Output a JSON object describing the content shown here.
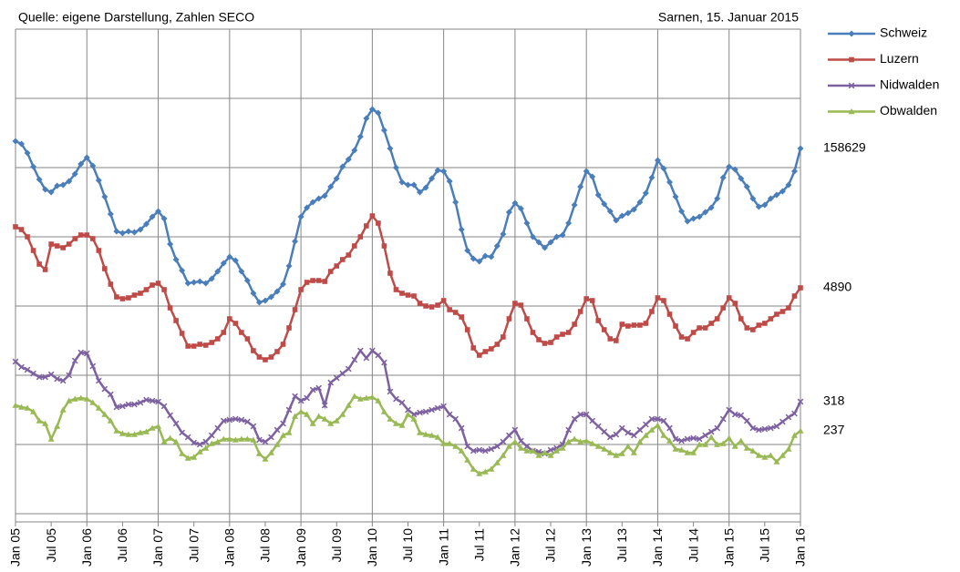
{
  "chart_data": {
    "type": "line",
    "annotations": [
      "Quelle: eigene Darstellung, Zahlen SECO",
      "Sarnen, 15. Januar 2015"
    ],
    "categories": [
      "Jan 05",
      null,
      null,
      null,
      null,
      null,
      "Jul 05",
      null,
      null,
      null,
      null,
      null,
      "Jan 06",
      null,
      null,
      null,
      null,
      null,
      "Jul 06",
      null,
      null,
      null,
      null,
      null,
      "Jan 07",
      null,
      null,
      null,
      null,
      null,
      "Jul 07",
      null,
      null,
      null,
      null,
      null,
      "Jan 08",
      null,
      null,
      null,
      null,
      null,
      "Jul 08",
      null,
      null,
      null,
      null,
      null,
      "Jan 09",
      null,
      null,
      null,
      null,
      null,
      "Jul 09",
      null,
      null,
      null,
      null,
      null,
      "Jan 10",
      null,
      null,
      null,
      null,
      null,
      "Jul 10",
      null,
      null,
      null,
      null,
      null,
      "Jan 11",
      null,
      null,
      null,
      null,
      null,
      "Jul 11",
      null,
      null,
      null,
      null,
      null,
      "Jan 12",
      null,
      null,
      null,
      null,
      null,
      "Jul 12",
      null,
      null,
      null,
      null,
      null,
      "Jan 13",
      null,
      null,
      null,
      null,
      null,
      "Jul 13",
      null,
      null,
      null,
      null,
      null,
      "Jan 14",
      null,
      null,
      null,
      null,
      null,
      "Jul 14",
      null,
      null,
      null,
      null,
      null,
      "Jan 15",
      null,
      null,
      null,
      null,
      null,
      "Jul 15",
      null,
      null,
      null,
      null,
      null,
      "Jan 16"
    ],
    "ylim": [
      -9,
      532
    ],
    "yticks": [
      0,
      76,
      152,
      228,
      304,
      380,
      456,
      532
    ],
    "grid": true,
    "legend": "right",
    "series": [
      {
        "name": "Schweiz",
        "color": "#4a7ebb",
        "marker": "diamond",
        "end_label": "158629",
        "values": [
          409,
          406,
          396,
          381,
          367,
          356,
          353,
          360,
          361,
          365,
          373,
          384,
          391,
          382,
          366,
          348,
          329,
          310,
          308,
          310,
          309,
          312,
          318,
          326,
          332,
          324,
          296,
          279,
          267,
          253,
          254,
          255,
          253,
          258,
          266,
          275,
          282,
          278,
          266,
          256,
          242,
          232,
          234,
          238,
          244,
          252,
          272,
          299,
          326,
          336,
          342,
          346,
          349,
          359,
          368,
          381,
          389,
          399,
          414,
          434,
          444,
          440,
          421,
          401,
          380,
          364,
          361,
          361,
          353,
          358,
          368,
          377,
          376,
          365,
          342,
          312,
          289,
          280,
          277,
          283,
          282,
          294,
          307,
          331,
          341,
          335,
          319,
          304,
          298,
          292,
          298,
          304,
          306,
          319,
          339,
          359,
          376,
          370,
          350,
          340,
          332,
          322,
          327,
          330,
          334,
          342,
          352,
          369,
          388,
          379,
          364,
          348,
          332,
          321,
          324,
          326,
          331,
          336,
          346,
          369,
          381,
          378,
          368,
          359,
          346,
          337,
          339,
          346,
          350,
          354,
          361,
          376,
          401
        ]
      },
      {
        "name": "Luzern",
        "color": "#be4b48",
        "marker": "square",
        "end_label": "4890",
        "values": [
          315,
          312,
          304,
          289,
          274,
          268,
          296,
          294,
          292,
          296,
          302,
          306,
          306,
          302,
          289,
          269,
          252,
          238,
          236,
          237,
          240,
          242,
          246,
          251,
          253,
          246,
          226,
          212,
          198,
          184,
          184,
          186,
          185,
          188,
          192,
          199,
          214,
          209,
          199,
          192,
          179,
          172,
          169,
          172,
          178,
          186,
          204,
          224,
          246,
          254,
          256,
          256,
          255,
          266,
          272,
          279,
          284,
          294,
          304,
          316,
          327,
          319,
          294,
          264,
          246,
          242,
          240,
          239,
          231,
          228,
          227,
          229,
          234,
          224,
          221,
          216,
          202,
          182,
          174,
          178,
          181,
          186,
          194,
          214,
          231,
          229,
          214,
          199,
          191,
          187,
          188,
          194,
          197,
          199,
          208,
          222,
          236,
          234,
          212,
          202,
          192,
          190,
          208,
          206,
          207,
          207,
          209,
          222,
          237,
          234,
          219,
          206,
          194,
          192,
          199,
          204,
          204,
          209,
          214,
          226,
          237,
          231,
          214,
          204,
          202,
          207,
          209,
          214,
          219,
          222,
          226,
          239,
          248
        ]
      },
      {
        "name": "Nidwalden",
        "color": "#7d60a0",
        "marker": "x",
        "end_label": "318",
        "values": [
          167,
          161,
          158,
          154,
          150,
          150,
          153,
          148,
          146,
          152,
          168,
          177,
          176,
          162,
          146,
          137,
          131,
          117,
          118,
          120,
          120,
          122,
          125,
          124,
          123,
          118,
          108,
          99,
          89,
          84,
          78,
          76,
          79,
          86,
          94,
          102,
          103,
          104,
          103,
          101,
          96,
          81,
          79,
          84,
          92,
          99,
          114,
          129,
          124,
          127,
          136,
          138,
          119,
          144,
          149,
          154,
          159,
          169,
          179,
          171,
          179,
          174,
          166,
          134,
          126,
          122,
          114,
          109,
          111,
          112,
          114,
          116,
          118,
          109,
          104,
          94,
          74,
          69,
          70,
          69,
          71,
          74,
          79,
          86,
          92,
          80,
          74,
          69,
          68,
          66,
          70,
          72,
          76,
          92,
          104,
          109,
          109,
          102,
          96,
          90,
          84,
          87,
          94,
          89,
          86,
          92,
          98,
          104,
          104,
          102,
          94,
          82,
          80,
          82,
          83,
          82,
          86,
          90,
          94,
          104,
          114,
          109,
          108,
          102,
          94,
          92,
          93,
          94,
          96,
          101,
          106,
          110,
          123
        ]
      },
      {
        "name": "Obwalden",
        "color": "#98b954",
        "marker": "triangle",
        "end_label": "237",
        "values": [
          119,
          117,
          116,
          112,
          102,
          99,
          82,
          96,
          114,
          124,
          126,
          127,
          126,
          122,
          116,
          109,
          102,
          91,
          88,
          87,
          87,
          89,
          90,
          94,
          96,
          79,
          83,
          79,
          66,
          61,
          62,
          68,
          72,
          77,
          79,
          82,
          82,
          81,
          82,
          82,
          81,
          66,
          60,
          67,
          76,
          86,
          89,
          107,
          112,
          109,
          99,
          107,
          104,
          99,
          102,
          109,
          119,
          129,
          126,
          127,
          128,
          124,
          112,
          104,
          99,
          97,
          109,
          104,
          89,
          87,
          86,
          84,
          77,
          77,
          74,
          69,
          59,
          49,
          44,
          46,
          49,
          56,
          64,
          74,
          79,
          72,
          69,
          69,
          64,
          67,
          64,
          69,
          72,
          79,
          82,
          79,
          80,
          77,
          74,
          71,
          67,
          64,
          66,
          74,
          67,
          79,
          86,
          92,
          97,
          86,
          80,
          71,
          70,
          67,
          67,
          76,
          76,
          84,
          76,
          77,
          83,
          74,
          80,
          72,
          69,
          64,
          62,
          64,
          57,
          64,
          71,
          86,
          91
        ]
      }
    ]
  }
}
